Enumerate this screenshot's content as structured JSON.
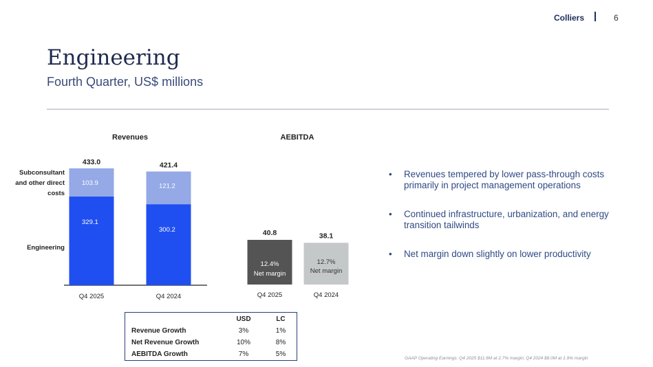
{
  "header": {
    "brand": "Colliers",
    "page_number": "6"
  },
  "title": "Engineering",
  "subtitle": "Fourth Quarter, US$ millions",
  "chart_data": [
    {
      "type": "bar",
      "stacked": true,
      "title": "Revenues",
      "categories": [
        "Q4 2025",
        "Q4 2024"
      ],
      "totals": [
        "433.0",
        "421.4"
      ],
      "series": [
        {
          "name": "Engineering",
          "values": [
            329.1,
            300.2
          ],
          "labels": [
            "329.1",
            "300.2"
          ],
          "color": "#1f4ff0"
        },
        {
          "name": "Subconsultant and other direct costs",
          "values": [
            103.9,
            121.2
          ],
          "labels": [
            "103.9",
            "121.2"
          ],
          "color": "#94a9e6"
        }
      ],
      "legend_labels": [
        "Subconsultant",
        "and other direct",
        "costs",
        "Engineering"
      ],
      "ylim": [
        0,
        433
      ]
    },
    {
      "type": "bar",
      "title": "AEBITDA",
      "categories": [
        "Q4 2025",
        "Q4 2024"
      ],
      "values": [
        40.8,
        38.1
      ],
      "value_labels": [
        "40.8",
        "38.1"
      ],
      "inner_labels": [
        [
          "12.4%",
          "Net margin"
        ],
        [
          "12.7%",
          "Net margin"
        ]
      ],
      "colors": [
        "#545454",
        "#c5c8c8"
      ],
      "ylim": [
        0,
        40.8
      ]
    }
  ],
  "bullets": [
    [
      "Revenues tempered by lower pass-through costs",
      "primarily in project management operations"
    ],
    [
      "Continued infrastructure, urbanization, and energy",
      "transition tailwinds"
    ],
    [
      "Net margin down slightly on lower productivity"
    ]
  ],
  "growth_table": {
    "headers": [
      "",
      "USD",
      "LC"
    ],
    "rows": [
      [
        "Revenue Growth",
        "3%",
        "1%"
      ],
      [
        "Net Revenue Growth",
        "10%",
        "8%"
      ],
      [
        "AEBITDA Growth",
        "7%",
        "5%"
      ]
    ]
  },
  "footnote": "GAAP Operating Earnings: Q4 2025 $11.6M at 2.7% margin; Q4 2024 $8.0M at 1.9% margin"
}
